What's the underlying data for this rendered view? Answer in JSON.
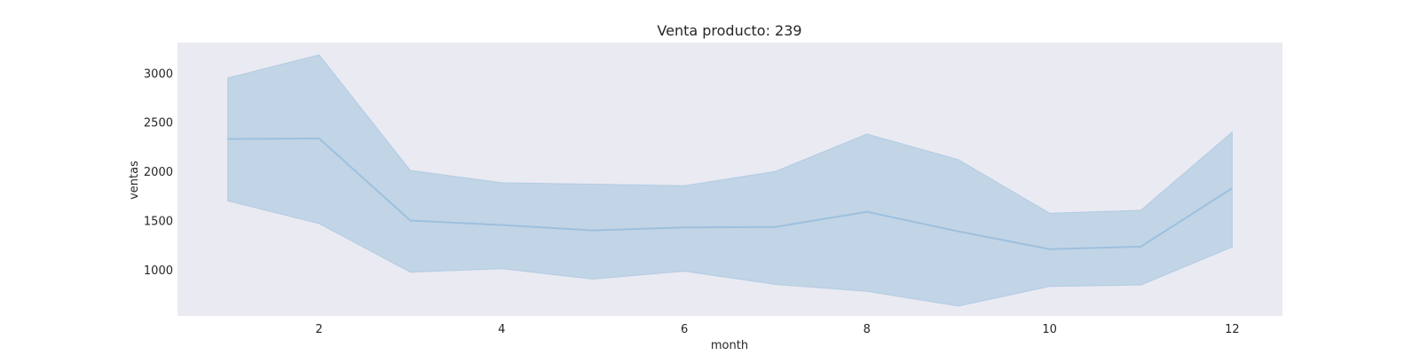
{
  "chart_data": {
    "type": "line",
    "title": "Venta producto: 239",
    "xlabel": "month",
    "ylabel": "ventas",
    "x": [
      1,
      2,
      3,
      4,
      5,
      6,
      7,
      8,
      9,
      10,
      11,
      12
    ],
    "series": [
      {
        "values": [
          2330,
          2335,
          1500,
          1455,
          1400,
          1430,
          1435,
          1590,
          1390,
          1210,
          1235,
          1830
        ],
        "lower": [
          1700,
          1470,
          975,
          1010,
          905,
          985,
          850,
          780,
          630,
          830,
          845,
          1230
        ],
        "upper": [
          2950,
          3185,
          2010,
          1885,
          1870,
          1855,
          2000,
          2380,
          2120,
          1575,
          1605,
          2400
        ]
      }
    ],
    "xlim": [
      0.45,
      12.55
    ],
    "ylim": [
      530,
      3310
    ],
    "xticks": [
      2,
      4,
      6,
      8,
      10,
      12
    ],
    "yticks": [
      1000,
      1500,
      2000,
      2500,
      3000
    ],
    "grid": false,
    "colors": {
      "line": "#9ec0dd",
      "band": "#b3cde3",
      "plot_background": "#eaeaf2"
    }
  }
}
